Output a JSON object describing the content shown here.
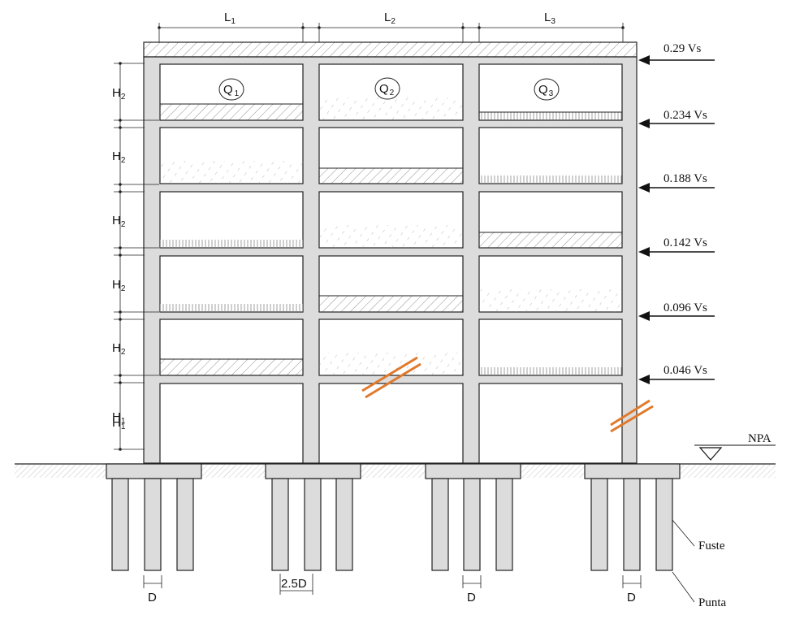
{
  "spans": {
    "l1": {
      "main": "L",
      "sub": "1"
    },
    "l2": {
      "main": "L",
      "sub": "2"
    },
    "l3": {
      "main": "L",
      "sub": "3"
    }
  },
  "heights": {
    "h2": {
      "main": "H",
      "sub": "2"
    },
    "h1": {
      "main": "H",
      "sub": "1"
    }
  },
  "loads": {
    "q1": {
      "main": "Q",
      "sub": "1"
    },
    "q2": {
      "main": "Q",
      "sub": "2"
    },
    "q3": {
      "main": "Q",
      "sub": "3"
    }
  },
  "lateral_forces": [
    "0.29  Vs",
    "0.234 Vs",
    "0.188  Vs",
    "0.142 Vs",
    "0.096  Vs",
    "0.046  Vs"
  ],
  "water_table": "NPA",
  "pile_labels": {
    "shaft": "Fuste",
    "tip": "Punta",
    "diameter": "D",
    "spacing": "2.5D"
  },
  "colors": {
    "member_fill": "#dcdcdc",
    "outline": "#222222",
    "crack": "#e07a2c"
  }
}
